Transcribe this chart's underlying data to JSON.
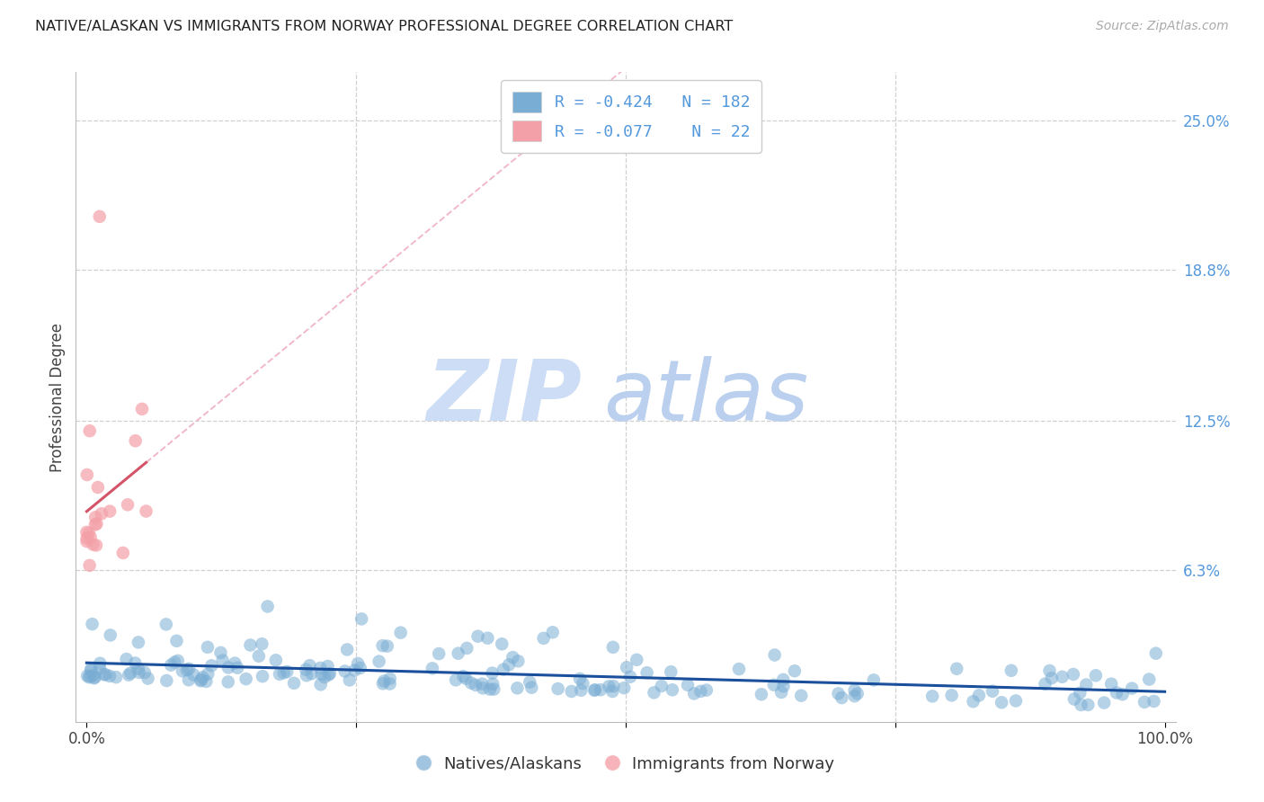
{
  "title": "NATIVE/ALASKAN VS IMMIGRANTS FROM NORWAY PROFESSIONAL DEGREE CORRELATION CHART",
  "source": "Source: ZipAtlas.com",
  "ylabel": "Professional Degree",
  "ytick_labels": [
    "25.0%",
    "18.8%",
    "12.5%",
    "6.3%"
  ],
  "ytick_values": [
    0.25,
    0.188,
    0.125,
    0.063
  ],
  "ylim": [
    0.0,
    0.27
  ],
  "xlim": [
    -0.01,
    1.01
  ],
  "legend_label1": "Natives/Alaskans",
  "legend_label2": "Immigrants from Norway",
  "r1": -0.424,
  "n1": 182,
  "r2": -0.077,
  "n2": 22,
  "color_blue": "#7aadd4",
  "color_pink": "#f4a0a8",
  "color_blue_line": "#1a4f9c",
  "color_pink_line": "#d4546a",
  "color_pink_dash": "#f0b8c8",
  "color_blue_text": "#5599dd",
  "background_color": "#FFFFFF",
  "grid_color": "#d0d0d0",
  "watermark_zip_color": "#ddeeff",
  "watermark_atlas_color": "#c8ddf5"
}
